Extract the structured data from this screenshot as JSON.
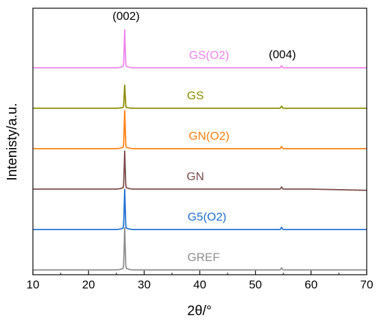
{
  "chart_data": {
    "type": "line",
    "xlabel": "2θ/°",
    "ylabel": "Intenisty/a.u.",
    "xlim": [
      10,
      70
    ],
    "x_ticks": [
      "10",
      "20",
      "30",
      "40",
      "50",
      "60",
      "70"
    ],
    "y_ticks_labeled": false,
    "grid": false,
    "annotations": [
      {
        "text": "(002)",
        "x": 26.5
      },
      {
        "text": "(004)",
        "x": 54.5
      }
    ],
    "peaks": [
      {
        "x": 26.5,
        "label": "(002)"
      },
      {
        "x": 54.7,
        "label": "(004)"
      }
    ],
    "series": [
      {
        "name": "GS(O2)",
        "color": "#ee82ee",
        "offset": 5,
        "peak_height": 0.9,
        "minor_peak_height": 0.05,
        "tail_drift": 0.0
      },
      {
        "name": "GS",
        "color": "#8b8b00",
        "offset": 4,
        "peak_height": 0.55,
        "minor_peak_height": 0.05,
        "tail_drift": 0.0
      },
      {
        "name": "GN(O2)",
        "color": "#ff7f0e",
        "offset": 3,
        "peak_height": 0.9,
        "minor_peak_height": 0.05,
        "tail_drift": 0.0
      },
      {
        "name": "GN",
        "color": "#7b4a4a",
        "offset": 2,
        "peak_height": 0.9,
        "minor_peak_height": 0.05,
        "tail_drift": 0.03
      },
      {
        "name": "G5(O2)",
        "color": "#1f6fd1",
        "offset": 1,
        "peak_height": 0.95,
        "minor_peak_height": 0.05,
        "tail_drift": 0.0
      },
      {
        "name": "GREF",
        "color": "#8c8c8c",
        "offset": 0,
        "peak_height": 1.0,
        "minor_peak_height": 0.05,
        "tail_drift": 0.0
      }
    ]
  }
}
